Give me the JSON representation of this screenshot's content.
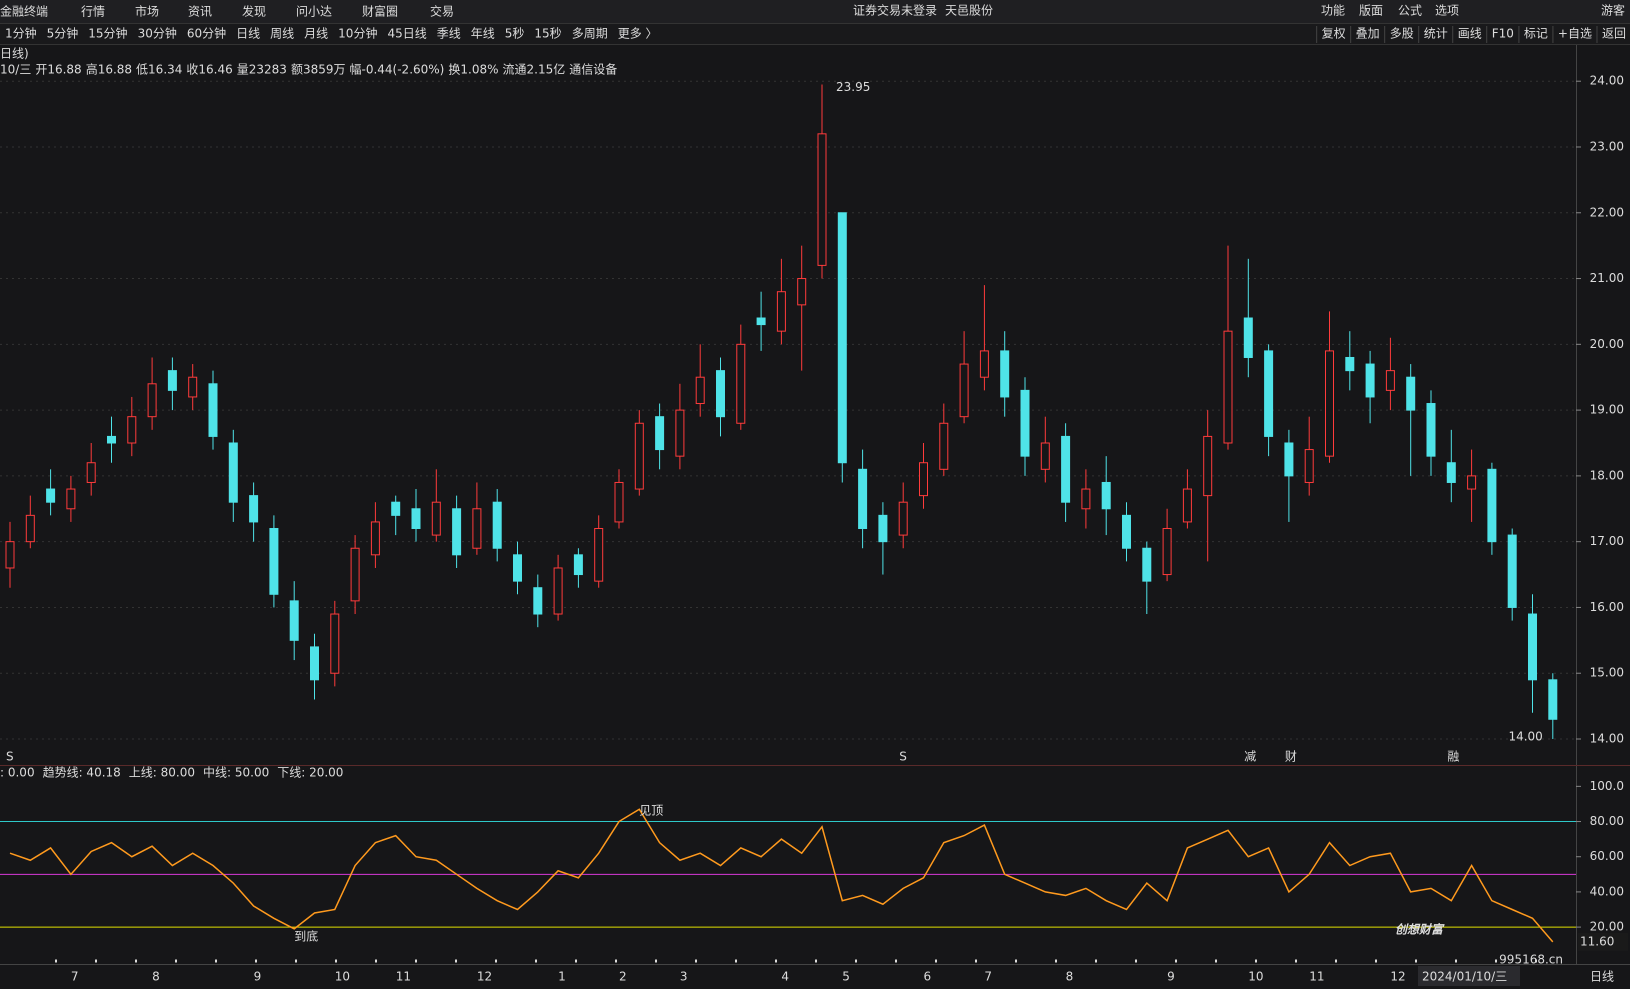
{
  "header": {
    "menu": [
      "金融终端",
      "行情",
      "市场",
      "资讯",
      "发现",
      "问小达",
      "财富圈",
      "交易"
    ],
    "notice": "证券交易未登录",
    "stock_name": "天邑股份",
    "right_menu": [
      "功能",
      "版面",
      "公式",
      "选项"
    ],
    "user": "游客"
  },
  "toolbar": {
    "periods": [
      "1分钟",
      "5分钟",
      "15分钟",
      "30分钟",
      "60分钟",
      "日线",
      "周线",
      "月线",
      "10分钟",
      "45日线",
      "季线",
      "年线",
      "5秒",
      "15秒",
      "多周期",
      "更多 〉"
    ],
    "active": "日线",
    "tools": [
      "复权",
      "叠加",
      "多股",
      "统计",
      "画线",
      "F10",
      "标记",
      "+自选",
      "返回"
    ]
  },
  "info": {
    "period_label": "日线)",
    "date": "10/三",
    "quote": [
      {
        "text": "开16.88",
        "color": "#3fcf5c"
      },
      {
        "text": "高16.88",
        "color": "#3fcf5c"
      },
      {
        "text": "低16.34",
        "color": "#3fcf5c"
      },
      {
        "text": "收16.46",
        "color": "#3fcf5c"
      },
      {
        "text": "量23283",
        "color": "#f0c800"
      },
      {
        "text": "额3859万",
        "color": "#dddddd"
      },
      {
        "text": "幅-0.44(-2.60%)",
        "color": "#3fcf5c"
      },
      {
        "text": "换1.08%",
        "color": "#dddddd"
      },
      {
        "text": "流通2.15亿",
        "color": "#dddddd"
      },
      {
        "text": "通信设备",
        "color": "#f0c800"
      }
    ]
  },
  "chart_data": [
    {
      "type": "candlestick",
      "categories": [
        null,
        null,
        null,
        "7",
        null,
        null,
        null,
        "8",
        null,
        null,
        null,
        null,
        "9",
        null,
        null,
        null,
        "10",
        null,
        null,
        "11",
        null,
        null,
        null,
        "12",
        null,
        null,
        null,
        "1",
        null,
        null,
        "2",
        null,
        null,
        "3",
        null,
        null,
        null,
        null,
        "4",
        null,
        null,
        "5",
        null,
        null,
        null,
        "6",
        null,
        null,
        "7",
        null,
        null,
        null,
        "8",
        null,
        null,
        null,
        null,
        "9",
        null,
        null,
        null,
        "10",
        null,
        null,
        "11",
        null,
        null,
        null,
        "12",
        null,
        null,
        null,
        null,
        null,
        null,
        null,
        null
      ],
      "open": [
        16.6,
        17.0,
        17.8,
        17.5,
        17.9,
        18.6,
        18.5,
        18.9,
        19.6,
        19.2,
        19.4,
        18.5,
        17.7,
        17.2,
        16.1,
        15.4,
        15.0,
        16.1,
        16.8,
        17.6,
        17.5,
        17.1,
        17.5,
        16.9,
        17.6,
        16.8,
        16.3,
        15.9,
        16.8,
        16.4,
        17.3,
        17.8,
        18.9,
        18.3,
        19.1,
        19.6,
        18.8,
        20.4,
        20.2,
        20.6,
        21.2,
        22.0,
        18.1,
        17.4,
        17.1,
        17.7,
        18.1,
        18.9,
        19.5,
        19.9,
        19.3,
        18.1,
        18.6,
        17.5,
        17.9,
        17.4,
        16.9,
        16.5,
        17.3,
        17.7,
        18.5,
        20.4,
        19.9,
        18.5,
        17.9,
        18.3,
        19.8,
        19.7,
        19.3,
        19.5,
        19.1,
        18.2,
        17.8,
        18.1,
        17.1,
        15.9,
        14.9
      ],
      "high": [
        17.3,
        17.7,
        18.1,
        18.0,
        18.5,
        18.9,
        19.2,
        19.8,
        19.8,
        19.7,
        19.6,
        18.7,
        17.9,
        17.4,
        16.4,
        15.6,
        16.1,
        17.1,
        17.6,
        17.7,
        17.8,
        18.1,
        17.7,
        17.9,
        17.8,
        17.0,
        16.5,
        16.8,
        16.9,
        17.4,
        18.1,
        19.0,
        19.1,
        19.4,
        20.0,
        19.8,
        20.3,
        20.8,
        21.3,
        21.5,
        23.95,
        22.0,
        18.4,
        17.6,
        17.9,
        18.5,
        19.1,
        20.2,
        20.9,
        20.2,
        19.5,
        18.9,
        18.8,
        18.1,
        18.3,
        17.6,
        17.0,
        17.5,
        18.1,
        19.0,
        21.5,
        21.3,
        20.0,
        18.7,
        18.9,
        20.5,
        20.2,
        19.9,
        20.1,
        19.7,
        19.3,
        18.7,
        18.4,
        18.2,
        17.2,
        16.2,
        15.0
      ],
      "low": [
        16.3,
        16.9,
        17.4,
        17.3,
        17.7,
        18.2,
        18.3,
        18.7,
        19.0,
        19.0,
        18.4,
        17.3,
        17.0,
        16.0,
        15.2,
        14.6,
        14.8,
        15.9,
        16.6,
        17.1,
        17.0,
        17.0,
        16.6,
        16.8,
        16.7,
        16.2,
        15.7,
        15.8,
        16.3,
        16.3,
        17.2,
        17.7,
        18.1,
        18.1,
        18.9,
        18.6,
        18.7,
        19.9,
        20.0,
        19.6,
        21.0,
        17.9,
        16.9,
        16.5,
        16.9,
        17.5,
        18.0,
        18.8,
        19.3,
        18.9,
        18.0,
        17.9,
        17.3,
        17.2,
        17.1,
        16.7,
        15.9,
        16.4,
        17.2,
        16.7,
        18.4,
        19.5,
        18.3,
        17.3,
        17.7,
        18.2,
        19.3,
        18.8,
        19.0,
        18.0,
        18.0,
        17.6,
        17.3,
        16.8,
        15.8,
        14.4,
        14.0
      ],
      "close": [
        17.0,
        17.4,
        17.6,
        17.8,
        18.2,
        18.5,
        18.9,
        19.4,
        19.3,
        19.5,
        18.6,
        17.6,
        17.3,
        16.2,
        15.5,
        14.9,
        15.9,
        16.9,
        17.3,
        17.4,
        17.2,
        17.6,
        16.8,
        17.5,
        16.9,
        16.4,
        15.9,
        16.6,
        16.5,
        17.2,
        17.9,
        18.8,
        18.4,
        19.0,
        19.5,
        18.9,
        20.0,
        20.3,
        20.8,
        21.0,
        23.2,
        18.2,
        17.2,
        17.0,
        17.6,
        18.2,
        18.8,
        19.7,
        19.9,
        19.2,
        18.3,
        18.5,
        17.6,
        17.8,
        17.5,
        16.9,
        16.4,
        17.2,
        17.8,
        18.6,
        20.2,
        19.8,
        18.6,
        18.0,
        18.4,
        19.9,
        19.6,
        19.2,
        19.6,
        19.0,
        18.3,
        17.9,
        18.0,
        17.0,
        16.0,
        14.9,
        14.3
      ],
      "up_color": "#ff3b3b",
      "down_color": "#4fe3e8",
      "ylim": [
        13.62,
        24.52
      ],
      "yticks": [
        {
          "value": 14,
          "label": "14.00"
        },
        {
          "value": 15,
          "label": "15.00"
        },
        {
          "value": 16,
          "label": "16.00"
        },
        {
          "value": 17,
          "label": "17.00"
        },
        {
          "value": 18,
          "label": "18.00"
        },
        {
          "value": 19,
          "label": "19.00"
        },
        {
          "value": 20,
          "label": "20.00"
        },
        {
          "value": 21,
          "label": "21.00"
        },
        {
          "value": 22,
          "label": "22.00"
        },
        {
          "value": 23,
          "label": "23.00"
        },
        {
          "value": 24,
          "label": "24.00"
        }
      ],
      "grid": true,
      "max_label": 23.95,
      "min_label": {
        "value": 14,
        "label": "14.00"
      },
      "events": [
        {
          "index": 0,
          "text": "S",
          "color": "#ff3b3b"
        },
        {
          "index": 44,
          "text": "S",
          "color": "#ff3b3b"
        },
        {
          "index": 61,
          "text": "减",
          "color": "#3fcf5c"
        },
        {
          "index": 63,
          "text": "财",
          "color": "#5aa0ff"
        },
        {
          "index": 71,
          "text": "融",
          "color": "#ff3b3b"
        }
      ],
      "cursor_label": "2024/01/10/三",
      "period": "日线"
    },
    {
      "type": "line",
      "legend": [
        {
          "text": ": 0.00",
          "color": "#dddddd"
        },
        {
          "text": "趋势线: 40.18",
          "color": "#ff9a1e"
        },
        {
          "text": "上线: 80.00",
          "color": "#2ec8c8"
        },
        {
          "text": "中线: 50.00",
          "color": "#d838d8"
        },
        {
          "text": "下线: 20.00",
          "color": "#e0e000"
        }
      ],
      "values": [
        62,
        58,
        65,
        50,
        63,
        68,
        60,
        66,
        55,
        62,
        55,
        45,
        32,
        25,
        19,
        28,
        30,
        55,
        68,
        72,
        60,
        58,
        50,
        42,
        35,
        30,
        40,
        52,
        48,
        62,
        80,
        87,
        68,
        58,
        62,
        55,
        65,
        60,
        70,
        62,
        77,
        35,
        38,
        33,
        42,
        48,
        68,
        72,
        78,
        50,
        45,
        40,
        38,
        42,
        35,
        30,
        45,
        35,
        65,
        70,
        75,
        60,
        65,
        40,
        50,
        68,
        55,
        60,
        62,
        40,
        42,
        35,
        55,
        35,
        30,
        25,
        11.6
      ],
      "color": "#ff9a1e",
      "levels": [
        {
          "value": 80,
          "color": "#2ec8c8"
        },
        {
          "value": 50,
          "color": "#d838d8"
        },
        {
          "value": 20,
          "color": "#e0e000"
        }
      ],
      "ylim": [
        3,
        111
      ],
      "yticks": [
        {
          "value": 20,
          "label": "20.00"
        },
        {
          "value": 40,
          "label": "40.00"
        },
        {
          "value": 60,
          "label": "60.00"
        },
        {
          "value": 80,
          "label": "80.00"
        },
        {
          "value": 100,
          "label": "100.0"
        }
      ],
      "last_label": {
        "value": 11.6,
        "label": "11.60"
      },
      "signals": [
        {
          "index": 14,
          "text": "到底",
          "color": "#e03030"
        },
        {
          "index": 31,
          "text": "见顶",
          "color": "#3fcf5c"
        }
      ],
      "watermark": "创想财富",
      "watermark_url": "995168.cn"
    }
  ]
}
